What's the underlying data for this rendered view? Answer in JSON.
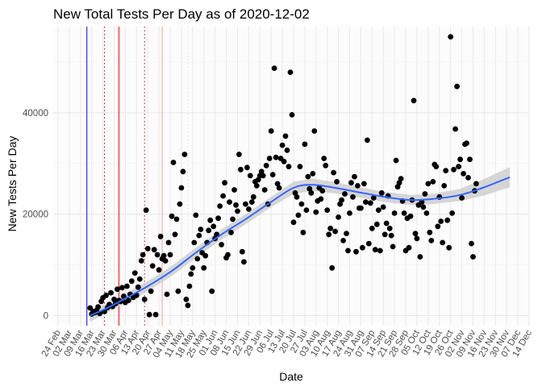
{
  "chart_data": {
    "type": "scatter",
    "title": "New Total Tests Per Day as of 2020-12-02",
    "xlabel": "Date",
    "ylabel": "New Tests Per Day",
    "x_domain": [
      "2020-02-21",
      "2020-12-14"
    ],
    "ylim": [
      -2000,
      57000
    ],
    "y_ticks": [
      0,
      20000,
      40000
    ],
    "y_tick_labels": [
      "0",
      "20000",
      "40000"
    ],
    "x_ticks": [
      "2020-02-24",
      "2020-03-02",
      "2020-03-09",
      "2020-03-16",
      "2020-03-23",
      "2020-03-30",
      "2020-04-06",
      "2020-04-13",
      "2020-04-20",
      "2020-04-27",
      "2020-05-04",
      "2020-05-11",
      "2020-05-18",
      "2020-05-25",
      "2020-06-01",
      "2020-06-08",
      "2020-06-15",
      "2020-06-22",
      "2020-06-29",
      "2020-07-06",
      "2020-07-13",
      "2020-07-20",
      "2020-07-27",
      "2020-08-03",
      "2020-08-10",
      "2020-08-17",
      "2020-08-24",
      "2020-08-31",
      "2020-09-07",
      "2020-09-14",
      "2020-09-21",
      "2020-09-28",
      "2020-10-05",
      "2020-10-12",
      "2020-10-19",
      "2020-10-26",
      "2020-11-02",
      "2020-11-09",
      "2020-11-16",
      "2020-11-23",
      "2020-11-30",
      "2020-12-07",
      "2020-12-14"
    ],
    "x_tick_labels": [
      "24 Feb",
      "02 Mar",
      "09 Mar",
      "16 Mar",
      "23 Mar",
      "30 Mar",
      "06 Apr",
      "13 Apr",
      "20 Apr",
      "27 Apr",
      "04 May",
      "11 May",
      "18 May",
      "25 May",
      "01 Jun",
      "08 Jun",
      "15 Jun",
      "22 Jun",
      "29 Jun",
      "06 Jul",
      "13 Jul",
      "20 Jul",
      "27 Jul",
      "03 Aug",
      "10 Aug",
      "17 Aug",
      "24 Aug",
      "31 Aug",
      "07 Sep",
      "14 Sep",
      "21 Sep",
      "28 Sep",
      "05 Oct",
      "12 Oct",
      "19 Oct",
      "26 Oct",
      "02 Nov",
      "09 Nov",
      "16 Nov",
      "23 Nov",
      "30 Nov",
      "07 Dec",
      "14 Dec"
    ],
    "vlines": [
      {
        "date": "2020-03-13",
        "color": "#0000ff",
        "style": "solid"
      },
      {
        "date": "2020-03-24",
        "color": "#8b0000",
        "style": "dotted"
      },
      {
        "date": "2020-04-02",
        "color": "#ff0000",
        "style": "solid"
      },
      {
        "date": "2020-04-18",
        "color": "#cc0000",
        "style": "dotted"
      },
      {
        "date": "2020-04-29",
        "color": "#ff9999",
        "style": "solid"
      },
      {
        "date": "2020-05-15",
        "color": "#dddddd",
        "style": "dotted"
      }
    ],
    "series": [
      {
        "points_color": "#000000",
        "start_date": "2020-03-15",
        "values": [
          1500,
          300,
          800,
          600,
          1000,
          1700,
          400,
          2800,
          3500,
          800,
          4000,
          1600,
          2200,
          4500,
          1800,
          3200,
          2400,
          5200,
          3000,
          2800,
          5500,
          3800,
          2600,
          5800,
          3000,
          4200,
          6800,
          3600,
          8400,
          4000,
          5600,
          7200,
          10800,
          12000,
          3200,
          20800,
          13200,
          200,
          4800,
          9800,
          13000,
          200,
          12000,
          9000,
          15600,
          11200,
          11800,
          10800,
          4200,
          14400,
          12000,
          19600,
          30200,
          16000,
          19000,
          4800,
          22000,
          25200,
          28400,
          31800,
          3200,
          2000,
          5800,
          8200,
          9400,
          14400,
          19800,
          11200,
          15800,
          17000,
          12400,
          9400,
          11800,
          14400,
          16800,
          18800,
          4800,
          17600,
          15200,
          16000,
          19200,
          21600,
          14000,
          23600,
          26200,
          11400,
          12000,
          22400,
          16400,
          19000,
          24800,
          21800,
          20600,
          31800,
          28800,
          12600,
          10600,
          22000,
          29200,
          21000,
          27600,
          22400,
          23400,
          26400,
          25600,
          26800,
          27600,
          28400,
          27600,
          24800,
          29600,
          22000,
          31000,
          36400,
          27800,
          48800,
          31200,
          26000,
          25200,
          31000,
          33600,
          30400,
          35400,
          32600,
          29400,
          48000,
          39600,
          18400,
          24200,
          23400,
          19800,
          29400,
          22000,
          16400,
          33800,
          20800,
          27400,
          25000,
          24200,
          28000,
          36400,
          20400,
          22600,
          25200,
          23000,
          24600,
          31000,
          29600,
          20800,
          16000,
          17200,
          9400,
          28200,
          16600,
          26400,
          19400,
          22000,
          22800,
          14800,
          24000,
          16200,
          12800,
          20200,
          26200,
          23400,
          27400,
          12600,
          25600,
          21200,
          21200,
          13400,
          26000,
          22400,
          34600,
          14200,
          22200,
          17200,
          23200,
          13000,
          18000,
          20800,
          12800,
          24200,
          21400,
          16000,
          18200,
          23600,
          17200,
          15800,
          13600,
          20200,
          30600,
          25400,
          26200,
          27000,
          22600,
          20200,
          12800,
          19200,
          13400,
          19600,
          22800,
          42400,
          16200,
          15200,
          21800,
          11600,
          22400,
          21400,
          24000,
          20200,
          26000,
          16400,
          14800,
          26400,
          29800,
          29400,
          17600,
          23400,
          18600,
          14400,
          25600,
          28600,
          18800,
          13400,
          55000,
          20200,
          28800,
          36800,
          45200,
          29400,
          30800,
          23200,
          28000,
          33800,
          34000,
          27200,
          30800,
          14200,
          11600,
          24600,
          26000
        ]
      }
    ],
    "smooth_curve": {
      "color": "#3366ff",
      "band_color": "#cccccc",
      "dates": [
        "2020-03-15",
        "2020-03-25",
        "2020-04-05",
        "2020-04-20",
        "2020-05-05",
        "2020-05-20",
        "2020-06-05",
        "2020-06-20",
        "2020-07-05",
        "2020-07-20",
        "2020-08-01",
        "2020-08-15",
        "2020-09-01",
        "2020-09-15",
        "2020-10-01",
        "2020-10-15",
        "2020-11-01",
        "2020-11-15",
        "2020-12-02"
      ],
      "fit": [
        0,
        1400,
        3200,
        5800,
        8800,
        12400,
        16000,
        19000,
        22200,
        25200,
        25800,
        25200,
        24200,
        23400,
        22800,
        23000,
        23800,
        25200,
        27300
      ],
      "lower": [
        -1200,
        500,
        2200,
        4800,
        7800,
        11400,
        15000,
        18000,
        21200,
        24000,
        24600,
        24100,
        23200,
        22400,
        21800,
        22000,
        22600,
        23600,
        25300
      ],
      "upper": [
        1200,
        2300,
        4200,
        6800,
        9800,
        13400,
        17000,
        20000,
        23200,
        26400,
        27000,
        26300,
        25200,
        24400,
        23800,
        24000,
        25000,
        26800,
        29300
      ]
    }
  }
}
